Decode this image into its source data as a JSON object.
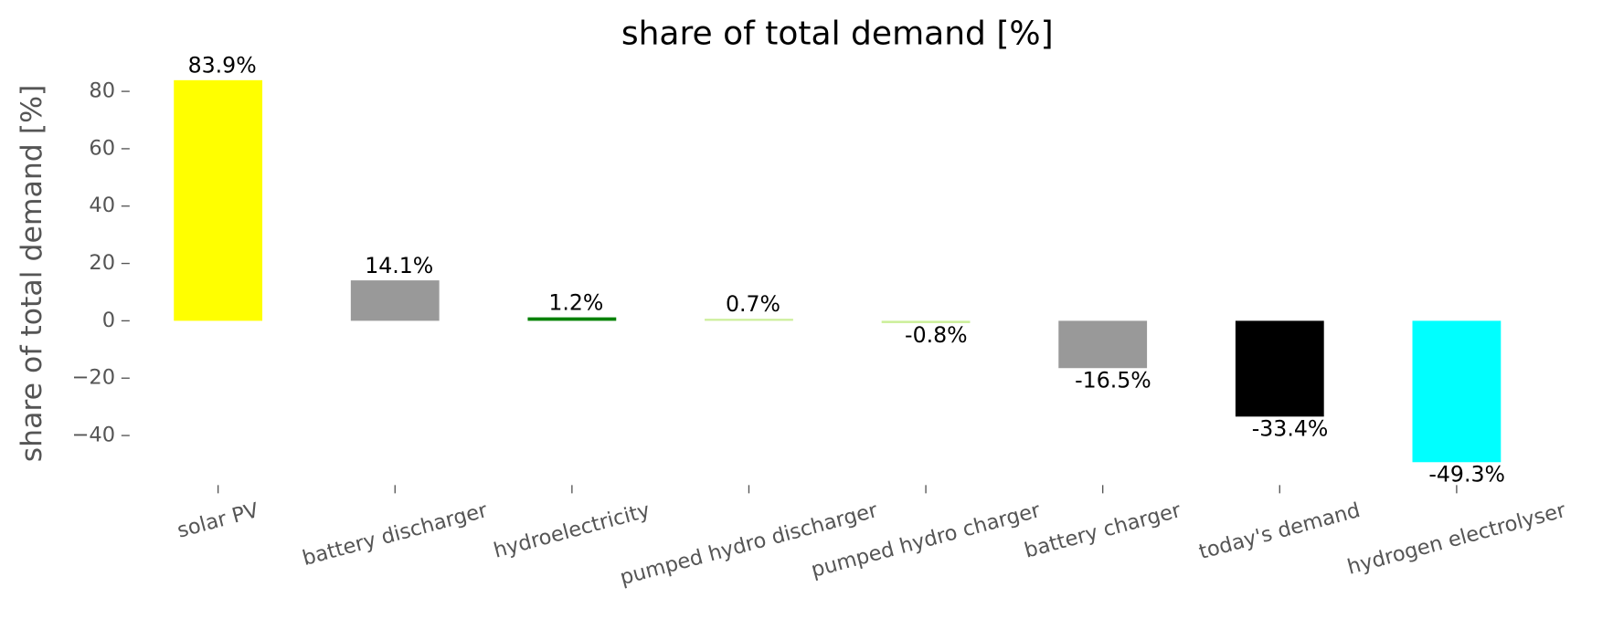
{
  "chart_data": {
    "type": "bar",
    "title": "share of total demand [%]",
    "y_label": "share of total demand [%]",
    "categories": [
      "solar PV",
      "battery discharger",
      "hydroelectricity",
      "pumped hydro discharger",
      "pumped hydro charger",
      "battery charger",
      "today's demand",
      "hydrogen electrolyser"
    ],
    "values": [
      83.9,
      14.1,
      1.2,
      0.7,
      -0.8,
      -16.5,
      -33.4,
      -49.3
    ],
    "value_labels": [
      "83.9%",
      "14.1%",
      "1.2%",
      "0.7%",
      "-0.8%",
      "-16.5%",
      "-33.4%",
      "-49.3%"
    ],
    "colors": [
      "#ffff00",
      "#999999",
      "#008000",
      "#ccee99",
      "#ccee99",
      "#999999",
      "#000000",
      "#00ffff"
    ],
    "ylim": [
      -55.96,
      90.56
    ],
    "yticks": [
      {
        "value": -40,
        "label": "−40"
      },
      {
        "value": -20,
        "label": "−20"
      },
      0,
      20,
      40,
      60,
      80
    ],
    "grid": false
  }
}
